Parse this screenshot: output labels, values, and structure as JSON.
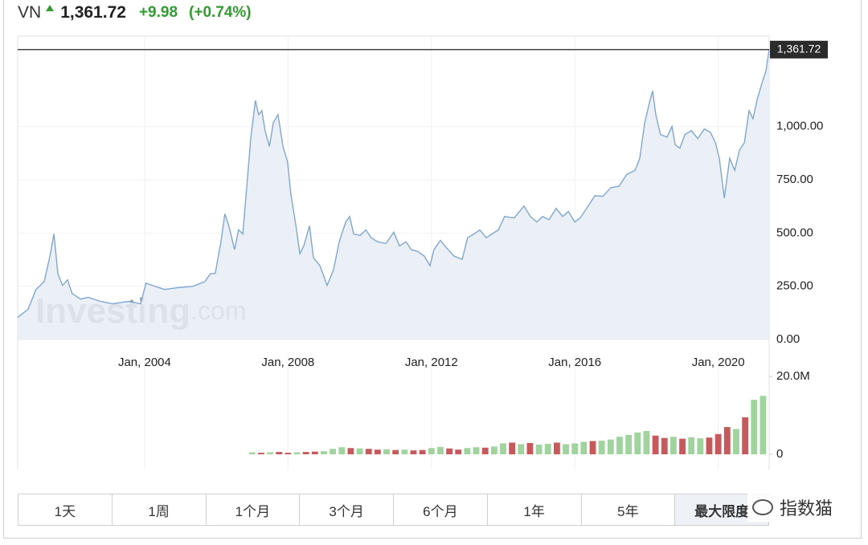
{
  "header": {
    "symbol": "VN",
    "price": "1,361.72",
    "change": "+9.98",
    "change_pct": "(+0.74%)"
  },
  "chart_data": {
    "type": "area",
    "watermark": {
      "brand": "Investing",
      "suffix": ".com"
    },
    "x": [
      2000.46,
      2000.75,
      2000.97,
      2001.2,
      2001.35,
      2001.47,
      2001.58,
      2001.71,
      2001.85,
      2001.98,
      2002.21,
      2002.43,
      2002.77,
      2003.1,
      2003.55,
      2003.89,
      2004.04,
      2004.22,
      2004.56,
      2004.9,
      2005.35,
      2005.68,
      2005.84,
      2005.97,
      2006.13,
      2006.24,
      2006.35,
      2006.51,
      2006.62,
      2006.74,
      2006.85,
      2006.96,
      2007.09,
      2007.18,
      2007.27,
      2007.36,
      2007.48,
      2007.59,
      2007.72,
      2007.86,
      2007.99,
      2008.08,
      2008.22,
      2008.33,
      2008.44,
      2008.6,
      2008.71,
      2008.89,
      2009.09,
      2009.27,
      2009.43,
      2009.61,
      2009.72,
      2009.83,
      2010.01,
      2010.17,
      2010.32,
      2010.5,
      2010.73,
      2010.95,
      2011.11,
      2011.29,
      2011.44,
      2011.62,
      2011.8,
      2011.96,
      2012.07,
      2012.25,
      2012.43,
      2012.63,
      2012.86,
      2013.01,
      2013.19,
      2013.35,
      2013.53,
      2013.69,
      2013.87,
      2014.04,
      2014.31,
      2014.58,
      2014.76,
      2014.94,
      2015.1,
      2015.28,
      2015.48,
      2015.66,
      2015.82,
      2016.0,
      2016.15,
      2016.33,
      2016.56,
      2016.78,
      2017.0,
      2017.23,
      2017.45,
      2017.68,
      2017.81,
      2017.95,
      2018.08,
      2018.17,
      2018.26,
      2018.39,
      2018.57,
      2018.71,
      2018.8,
      2018.93,
      2019.07,
      2019.25,
      2019.43,
      2019.61,
      2019.78,
      2019.92,
      2020.03,
      2020.17,
      2020.32,
      2020.46,
      2020.59,
      2020.73,
      2020.86,
      2020.97,
      2021.09,
      2021.22,
      2021.33,
      2021.42
    ],
    "series": [
      {
        "color": "#7fa7d4",
        "fill": "#e6edf5",
        "values": [
          104,
          142,
          235,
          272,
          384,
          496,
          310,
          254,
          280,
          216,
          190,
          198,
          179,
          168,
          179,
          168,
          265,
          254,
          235,
          243,
          250,
          272,
          310,
          310,
          459,
          590,
          534,
          422,
          515,
          496,
          720,
          944,
          1123,
          1056,
          1075,
          981,
          907,
          1019,
          1056,
          907,
          832,
          683,
          534,
          403,
          440,
          534,
          384,
          347,
          254,
          328,
          459,
          552,
          578,
          496,
          489,
          515,
          478,
          459,
          451,
          504,
          440,
          459,
          422,
          414,
          392,
          347,
          422,
          466,
          429,
          392,
          377,
          478,
          496,
          515,
          478,
          496,
          515,
          578,
          571,
          627,
          578,
          552,
          578,
          563,
          616,
          578,
          601,
          552,
          571,
          616,
          675,
          672,
          713,
          720,
          776,
          795,
          851,
          1019,
          1112,
          1168,
          1056,
          963,
          951,
          1000,
          914,
          899,
          963,
          981,
          944,
          989,
          974,
          925,
          851,
          664,
          851,
          795,
          888,
          925,
          1075,
          1037,
          1131,
          1205,
          1261,
          1361.72
        ]
      }
    ],
    "xlim": [
      2000.46,
      2021.42
    ],
    "xticks": [
      {
        "value": 2004,
        "label": "Jan, 2004"
      },
      {
        "value": 2008,
        "label": "Jan, 2008"
      },
      {
        "value": 2012,
        "label": "Jan, 2012"
      },
      {
        "value": 2016,
        "label": "Jan, 2016"
      },
      {
        "value": 2020,
        "label": "Jan, 2020"
      }
    ],
    "ylim": [
      0,
      1425
    ],
    "yticks": [
      {
        "value": 0,
        "label": "0.00"
      },
      {
        "value": 250,
        "label": "250.00"
      },
      {
        "value": 500,
        "label": "500.00"
      },
      {
        "value": 750,
        "label": "750.00"
      },
      {
        "value": 1000,
        "label": "1,000.00"
      }
    ],
    "price_line": {
      "value": 1361.72,
      "label": "1,361.72",
      "color": "#444444"
    },
    "grid": true,
    "volume": {
      "ylim": [
        0,
        20000000
      ],
      "yticks": [
        0,
        {
          "value": 20000000,
          "label": "20.0M"
        }
      ],
      "x": [
        2007.0,
        2007.25,
        2007.5,
        2007.75,
        2008.0,
        2008.25,
        2008.5,
        2008.75,
        2009.0,
        2009.25,
        2009.5,
        2009.75,
        2010.0,
        2010.25,
        2010.5,
        2010.75,
        2011.0,
        2011.25,
        2011.5,
        2011.75,
        2012.0,
        2012.25,
        2012.5,
        2012.75,
        2013.0,
        2013.25,
        2013.5,
        2013.75,
        2014.0,
        2014.25,
        2014.5,
        2014.75,
        2015.0,
        2015.25,
        2015.5,
        2015.75,
        2016.0,
        2016.25,
        2016.5,
        2016.75,
        2017.0,
        2017.25,
        2017.5,
        2017.75,
        2018.0,
        2018.25,
        2018.5,
        2018.75,
        2019.0,
        2019.25,
        2019.5,
        2019.75,
        2020.0,
        2020.25,
        2020.5,
        2020.75,
        2021.0,
        2021.25
      ],
      "values": [
        500000,
        400000,
        500000,
        600000,
        400000,
        500000,
        600000,
        700000,
        800000,
        1400000,
        1800000,
        1600000,
        1500000,
        1400000,
        1200000,
        1300000,
        1100000,
        1200000,
        1000000,
        1100000,
        1600000,
        1900000,
        1500000,
        1200000,
        1600000,
        1800000,
        1700000,
        2000000,
        2800000,
        3000000,
        2600000,
        2900000,
        2500000,
        2700000,
        3000000,
        2600000,
        2800000,
        3200000,
        3400000,
        3500000,
        3800000,
        4500000,
        5000000,
        5600000,
        6000000,
        4800000,
        4200000,
        4500000,
        4000000,
        4400000,
        4100000,
        4300000,
        5200000,
        7000000,
        6500000,
        9500000,
        14000000,
        15000000
      ],
      "colors": [
        "#9fd49c",
        "#c9585a",
        "#9fd49c",
        "#c9585a",
        "#c9585a",
        "#9fd49c",
        "#c9585a",
        "#c9585a",
        "#9fd49c",
        "#9fd49c",
        "#9fd49c",
        "#c9585a",
        "#9fd49c",
        "#c9585a",
        "#c9585a",
        "#9fd49c",
        "#c9585a",
        "#9fd49c",
        "#c9585a",
        "#c9585a",
        "#9fd49c",
        "#9fd49c",
        "#c9585a",
        "#c9585a",
        "#9fd49c",
        "#9fd49c",
        "#c9585a",
        "#9fd49c",
        "#9fd49c",
        "#c9585a",
        "#9fd49c",
        "#c9585a",
        "#9fd49c",
        "#9fd49c",
        "#c9585a",
        "#9fd49c",
        "#9fd49c",
        "#9fd49c",
        "#c9585a",
        "#9fd49c",
        "#9fd49c",
        "#9fd49c",
        "#9fd49c",
        "#9fd49c",
        "#9fd49c",
        "#c9585a",
        "#c9585a",
        "#9fd49c",
        "#c9585a",
        "#9fd49c",
        "#9fd49c",
        "#c9585a",
        "#c9585a",
        "#c9585a",
        "#9fd49c",
        "#c9585a",
        "#9fd49c",
        "#9fd49c"
      ]
    }
  },
  "range_buttons": [
    "1天",
    "1周",
    "1个月",
    "3个月",
    "6个月",
    "1年",
    "5年",
    "最大限度"
  ],
  "watermark_logo": "指数猫"
}
